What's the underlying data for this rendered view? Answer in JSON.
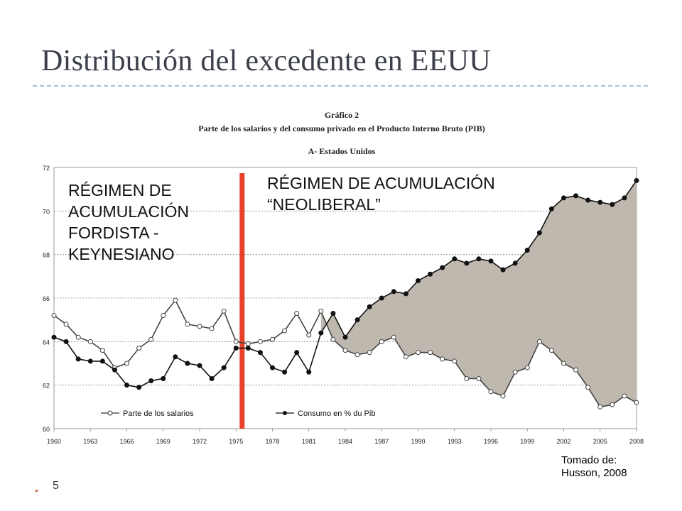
{
  "slide": {
    "title": "Distribución del excedente en EEUU",
    "slide_number": "5",
    "credit_line1": "Tomado de:",
    "credit_line2": "Husson, 2008",
    "colors": {
      "title": "#3b3f4a",
      "divider": "#a9c1d3",
      "regime_line": "#e8432a",
      "gap_fill": "#bfb8ae"
    }
  },
  "chart_data": {
    "type": "line",
    "title": "Gráfico 2",
    "subtitle": "Parte de los salarios y del consumo privado en el Producto Interno Bruto (PIB)",
    "panel_label": "A- Estados Unidos",
    "xlabel": "",
    "ylabel": "",
    "xlim": [
      1960,
      2008
    ],
    "ylim": [
      60,
      72
    ],
    "yticks": [
      60,
      62,
      64,
      66,
      68,
      70,
      72
    ],
    "xticks": [
      1960,
      1963,
      1966,
      1969,
      1972,
      1975,
      1978,
      1981,
      1984,
      1987,
      1990,
      1993,
      1996,
      1999,
      2002,
      2005,
      2008
    ],
    "grid": true,
    "legend_position": "bottom",
    "annotations": {
      "fordist": [
        "RÉGIMEN DE",
        "ACUMULACIÓN",
        "FORDISTA -",
        "KEYNESIANO"
      ],
      "neoliberal": [
        "RÉGIMEN DE ACUMULACIÓN",
        "“NEOLIBERAL”"
      ]
    },
    "regime_break_year": 1975.5,
    "shade_from_year": 1982,
    "series": [
      {
        "name": "Parte de los salarios",
        "marker": "open-circle",
        "x": [
          1960,
          1961,
          1962,
          1963,
          1964,
          1965,
          1966,
          1967,
          1968,
          1969,
          1970,
          1971,
          1972,
          1973,
          1974,
          1975,
          1976,
          1977,
          1978,
          1979,
          1980,
          1981,
          1982,
          1983,
          1984,
          1985,
          1986,
          1987,
          1988,
          1989,
          1990,
          1991,
          1992,
          1993,
          1994,
          1995,
          1996,
          1997,
          1998,
          1999,
          2000,
          2001,
          2002,
          2003,
          2004,
          2005,
          2006,
          2007,
          2008
        ],
        "values": [
          65.2,
          64.8,
          64.2,
          64.0,
          63.6,
          62.8,
          63.0,
          63.7,
          64.1,
          65.2,
          65.9,
          64.8,
          64.7,
          64.6,
          65.4,
          64.0,
          63.9,
          64.0,
          64.1,
          64.5,
          65.3,
          64.3,
          65.4,
          64.1,
          63.6,
          63.4,
          63.5,
          64.0,
          64.2,
          63.3,
          63.5,
          63.5,
          63.2,
          63.1,
          62.3,
          62.3,
          61.7,
          61.5,
          62.6,
          62.8,
          64.0,
          63.6,
          63.0,
          62.7,
          61.9,
          61.0,
          61.1,
          61.5,
          61.2
        ]
      },
      {
        "name": "Consumo en % du Pib",
        "marker": "filled-circle",
        "x": [
          1960,
          1961,
          1962,
          1963,
          1964,
          1965,
          1966,
          1967,
          1968,
          1969,
          1970,
          1971,
          1972,
          1973,
          1974,
          1975,
          1976,
          1977,
          1978,
          1979,
          1980,
          1981,
          1982,
          1983,
          1984,
          1985,
          1986,
          1987,
          1988,
          1989,
          1990,
          1991,
          1992,
          1993,
          1994,
          1995,
          1996,
          1997,
          1998,
          1999,
          2000,
          2001,
          2002,
          2003,
          2004,
          2005,
          2006,
          2007,
          2008
        ],
        "values": [
          64.2,
          64.0,
          63.2,
          63.1,
          63.1,
          62.7,
          62.0,
          61.9,
          62.2,
          62.3,
          63.3,
          63.0,
          62.9,
          62.3,
          62.8,
          63.7,
          63.7,
          63.5,
          62.8,
          62.6,
          63.5,
          62.6,
          64.4,
          65.3,
          64.2,
          65.0,
          65.6,
          66.0,
          66.3,
          66.2,
          66.8,
          67.1,
          67.4,
          67.8,
          67.6,
          67.8,
          67.7,
          67.3,
          67.6,
          68.2,
          69.0,
          70.1,
          70.6,
          70.7,
          70.5,
          70.4,
          70.3,
          70.6,
          71.4
        ]
      }
    ]
  }
}
